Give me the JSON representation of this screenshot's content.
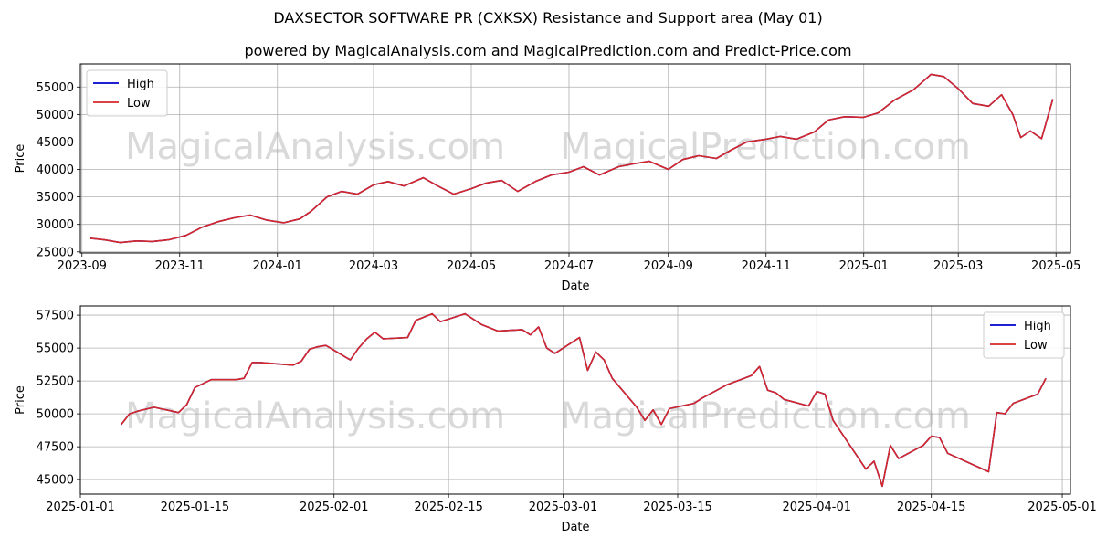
{
  "title": "DAXSECTOR SOFTWARE PR (CXKSX) Resistance and Support area (May 01)",
  "subtitle": "powered by MagicalAnalysis.com and MagicalPrediction.com and Predict-Price.com",
  "watermarks": [
    "MagicalAnalysis.com",
    "MagicalPrediction.com"
  ],
  "colors": {
    "high": "#0000cc",
    "low": "#d62728",
    "grid": "#b0b0b0",
    "watermark": "#d9d9d9"
  },
  "chart_data": [
    {
      "type": "line",
      "xlabel": "Date",
      "ylabel": "Price",
      "ylim": [
        24800,
        59200
      ],
      "xlim": [
        "2023-08-31",
        "2025-05-10"
      ],
      "grid": true,
      "legend_position": "top-left",
      "legend": [
        "High",
        "Low"
      ],
      "x_ticks": [
        "2023-09",
        "2023-11",
        "2024-01",
        "2024-03",
        "2024-05",
        "2024-07",
        "2024-09",
        "2024-11",
        "2025-01",
        "2025-03",
        "2025-05"
      ],
      "y_ticks": [
        25000,
        30000,
        35000,
        40000,
        45000,
        50000,
        55000
      ],
      "x_tick_values": [
        "2023-09-01",
        "2023-11-01",
        "2024-01-01",
        "2024-03-01",
        "2024-05-01",
        "2024-07-01",
        "2024-09-01",
        "2024-11-01",
        "2025-01-01",
        "2025-03-01",
        "2025-05-01"
      ],
      "y_tick_labels": [
        "25000",
        "30000",
        "35000",
        "40000",
        "45000",
        "50000",
        "55000"
      ],
      "series": [
        {
          "name": "High",
          "color": "#0000cc",
          "x": [
            "2023-09-06",
            "2023-09-15",
            "2023-09-25",
            "2023-10-05",
            "2023-10-15",
            "2023-10-25",
            "2023-11-05",
            "2023-11-15",
            "2023-11-25",
            "2023-12-05",
            "2023-12-15",
            "2023-12-25",
            "2024-01-05",
            "2024-01-15",
            "2024-01-22",
            "2024-02-01",
            "2024-02-10",
            "2024-02-20",
            "2024-03-01",
            "2024-03-10",
            "2024-03-20",
            "2024-04-01",
            "2024-04-10",
            "2024-04-20",
            "2024-05-01",
            "2024-05-10",
            "2024-05-20",
            "2024-05-30",
            "2024-06-10",
            "2024-06-20",
            "2024-07-01",
            "2024-07-10",
            "2024-07-20",
            "2024-08-01",
            "2024-08-10",
            "2024-08-20",
            "2024-09-01",
            "2024-09-10",
            "2024-09-20",
            "2024-10-01",
            "2024-10-10",
            "2024-10-20",
            "2024-11-01",
            "2024-11-10",
            "2024-11-20",
            "2024-12-01",
            "2024-12-10",
            "2024-12-20",
            "2025-01-01",
            "2025-01-10",
            "2025-01-20",
            "2025-02-01",
            "2025-02-12",
            "2025-02-20",
            "2025-03-01",
            "2025-03-10",
            "2025-03-20",
            "2025-03-28",
            "2025-04-04",
            "2025-04-09",
            "2025-04-15",
            "2025-04-22",
            "2025-04-29"
          ],
          "y": [
            27500,
            27200,
            26700,
            27000,
            26900,
            27200,
            28000,
            29500,
            30500,
            31200,
            31700,
            30800,
            30300,
            31000,
            32400,
            35000,
            36000,
            35500,
            37200,
            37800,
            37000,
            38500,
            37000,
            35500,
            36500,
            37500,
            38000,
            36000,
            37800,
            39000,
            39500,
            40500,
            39000,
            40500,
            41000,
            41500,
            40000,
            41800,
            42500,
            42000,
            43500,
            45000,
            45500,
            46000,
            45500,
            46800,
            49000,
            49600,
            49500,
            50300,
            52600,
            54500,
            57300,
            56900,
            54700,
            52000,
            51500,
            53600,
            50000,
            45800,
            47000,
            45600,
            52800
          ]
        },
        {
          "name": "Low",
          "color": "#d62728",
          "x": [
            "2023-09-06",
            "2023-09-15",
            "2023-09-25",
            "2023-10-05",
            "2023-10-15",
            "2023-10-25",
            "2023-11-05",
            "2023-11-15",
            "2023-11-25",
            "2023-12-05",
            "2023-12-15",
            "2023-12-25",
            "2024-01-05",
            "2024-01-15",
            "2024-01-22",
            "2024-02-01",
            "2024-02-10",
            "2024-02-20",
            "2024-03-01",
            "2024-03-10",
            "2024-03-20",
            "2024-04-01",
            "2024-04-10",
            "2024-04-20",
            "2024-05-01",
            "2024-05-10",
            "2024-05-20",
            "2024-05-30",
            "2024-06-10",
            "2024-06-20",
            "2024-07-01",
            "2024-07-10",
            "2024-07-20",
            "2024-08-01",
            "2024-08-10",
            "2024-08-20",
            "2024-09-01",
            "2024-09-10",
            "2024-09-20",
            "2024-10-01",
            "2024-10-10",
            "2024-10-20",
            "2024-11-01",
            "2024-11-10",
            "2024-11-20",
            "2024-12-01",
            "2024-12-10",
            "2024-12-20",
            "2025-01-01",
            "2025-01-10",
            "2025-01-20",
            "2025-02-01",
            "2025-02-12",
            "2025-02-20",
            "2025-03-01",
            "2025-03-10",
            "2025-03-20",
            "2025-03-28",
            "2025-04-04",
            "2025-04-09",
            "2025-04-15",
            "2025-04-22",
            "2025-04-29"
          ],
          "y": [
            27500,
            27200,
            26700,
            27000,
            26900,
            27200,
            28000,
            29500,
            30500,
            31200,
            31700,
            30800,
            30300,
            31000,
            32400,
            35000,
            36000,
            35500,
            37200,
            37800,
            37000,
            38500,
            37000,
            35500,
            36500,
            37500,
            38000,
            36000,
            37800,
            39000,
            39500,
            40500,
            39000,
            40500,
            41000,
            41500,
            40000,
            41800,
            42500,
            42000,
            43500,
            45000,
            45500,
            46000,
            45500,
            46800,
            49000,
            49600,
            49500,
            50300,
            52600,
            54500,
            57300,
            56900,
            54700,
            52000,
            51500,
            53600,
            50000,
            45800,
            47000,
            45600,
            52800
          ]
        }
      ]
    },
    {
      "type": "line",
      "xlabel": "Date",
      "ylabel": "Price",
      "ylim": [
        43900,
        58200
      ],
      "xlim": [
        "2025-01-01",
        "2025-05-02"
      ],
      "grid": true,
      "legend_position": "top-right",
      "legend": [
        "High",
        "Low"
      ],
      "x_ticks": [
        "2025-01-01",
        "2025-01-15",
        "2025-02-01",
        "2025-02-15",
        "2025-03-01",
        "2025-03-15",
        "2025-04-01",
        "2025-04-15",
        "2025-05-01"
      ],
      "y_ticks": [
        45000,
        47500,
        50000,
        52500,
        55000,
        57500
      ],
      "x_tick_values": [
        "2025-01-01",
        "2025-01-15",
        "2025-02-01",
        "2025-02-15",
        "2025-03-01",
        "2025-03-15",
        "2025-04-01",
        "2025-04-15",
        "2025-05-01"
      ],
      "y_tick_labels": [
        "45000",
        "47500",
        "50000",
        "52500",
        "55000",
        "57500"
      ],
      "series": [
        {
          "name": "High",
          "color": "#0000cc",
          "x": [
            "2025-01-06",
            "2025-01-07",
            "2025-01-08",
            "2025-01-10",
            "2025-01-13",
            "2025-01-14",
            "2025-01-15",
            "2025-01-17",
            "2025-01-20",
            "2025-01-21",
            "2025-01-22",
            "2025-01-23",
            "2025-01-27",
            "2025-01-28",
            "2025-01-29",
            "2025-01-30",
            "2025-01-31",
            "2025-02-03",
            "2025-02-04",
            "2025-02-05",
            "2025-02-06",
            "2025-02-07",
            "2025-02-10",
            "2025-02-11",
            "2025-02-13",
            "2025-02-14",
            "2025-02-17",
            "2025-02-19",
            "2025-02-21",
            "2025-02-24",
            "2025-02-25",
            "2025-02-26",
            "2025-02-27",
            "2025-02-28",
            "2025-03-03",
            "2025-03-04",
            "2025-03-05",
            "2025-03-06",
            "2025-03-07",
            "2025-03-10",
            "2025-03-11",
            "2025-03-12",
            "2025-03-13",
            "2025-03-14",
            "2025-03-17",
            "2025-03-18",
            "2025-03-21",
            "2025-03-24",
            "2025-03-25",
            "2025-03-26",
            "2025-03-27",
            "2025-03-28",
            "2025-03-31",
            "2025-04-01",
            "2025-04-02",
            "2025-04-03",
            "2025-04-07",
            "2025-04-08",
            "2025-04-09",
            "2025-04-10",
            "2025-04-11",
            "2025-04-14",
            "2025-04-15",
            "2025-04-16",
            "2025-04-17",
            "2025-04-22",
            "2025-04-23",
            "2025-04-24",
            "2025-04-25",
            "2025-04-28",
            "2025-04-29"
          ],
          "y": [
            49200,
            50000,
            50200,
            50500,
            50100,
            50700,
            52000,
            52600,
            52600,
            52700,
            53900,
            53900,
            53700,
            54000,
            54900,
            55100,
            55200,
            54100,
            55000,
            55700,
            56200,
            55700,
            55800,
            57100,
            57600,
            57000,
            57600,
            56800,
            56300,
            56400,
            56000,
            56600,
            55000,
            54600,
            55800,
            53300,
            54700,
            54100,
            52700,
            50500,
            49500,
            50300,
            49200,
            50400,
            50800,
            51200,
            52200,
            52900,
            53600,
            51800,
            51600,
            51100,
            50600,
            51700,
            51500,
            49500,
            45800,
            46400,
            44500,
            47600,
            46600,
            47600,
            48300,
            48200,
            47000,
            45600,
            50100,
            50000,
            50800,
            51500,
            52700
          ]
        },
        {
          "name": "Low",
          "color": "#d62728",
          "x": [
            "2025-01-06",
            "2025-01-07",
            "2025-01-08",
            "2025-01-10",
            "2025-01-13",
            "2025-01-14",
            "2025-01-15",
            "2025-01-17",
            "2025-01-20",
            "2025-01-21",
            "2025-01-22",
            "2025-01-23",
            "2025-01-27",
            "2025-01-28",
            "2025-01-29",
            "2025-01-30",
            "2025-01-31",
            "2025-02-03",
            "2025-02-04",
            "2025-02-05",
            "2025-02-06",
            "2025-02-07",
            "2025-02-10",
            "2025-02-11",
            "2025-02-13",
            "2025-02-14",
            "2025-02-17",
            "2025-02-19",
            "2025-02-21",
            "2025-02-24",
            "2025-02-25",
            "2025-02-26",
            "2025-02-27",
            "2025-02-28",
            "2025-03-03",
            "2025-03-04",
            "2025-03-05",
            "2025-03-06",
            "2025-03-07",
            "2025-03-10",
            "2025-03-11",
            "2025-03-12",
            "2025-03-13",
            "2025-03-14",
            "2025-03-17",
            "2025-03-18",
            "2025-03-21",
            "2025-03-24",
            "2025-03-25",
            "2025-03-26",
            "2025-03-27",
            "2025-03-28",
            "2025-03-31",
            "2025-04-01",
            "2025-04-02",
            "2025-04-03",
            "2025-04-07",
            "2025-04-08",
            "2025-04-09",
            "2025-04-10",
            "2025-04-11",
            "2025-04-14",
            "2025-04-15",
            "2025-04-16",
            "2025-04-17",
            "2025-04-22",
            "2025-04-23",
            "2025-04-24",
            "2025-04-25",
            "2025-04-28",
            "2025-04-29"
          ],
          "y": [
            49200,
            50000,
            50200,
            50500,
            50100,
            50700,
            52000,
            52600,
            52600,
            52700,
            53900,
            53900,
            53700,
            54000,
            54900,
            55100,
            55200,
            54100,
            55000,
            55700,
            56200,
            55700,
            55800,
            57100,
            57600,
            57000,
            57600,
            56800,
            56300,
            56400,
            56000,
            56600,
            55000,
            54600,
            55800,
            53300,
            54700,
            54100,
            52700,
            50500,
            49500,
            50300,
            49200,
            50400,
            50800,
            51200,
            52200,
            52900,
            53600,
            51800,
            51600,
            51100,
            50600,
            51700,
            51500,
            49500,
            45800,
            46400,
            44500,
            47600,
            46600,
            47600,
            48300,
            48200,
            47000,
            45600,
            50100,
            50000,
            50800,
            51500,
            52700
          ]
        }
      ]
    }
  ]
}
